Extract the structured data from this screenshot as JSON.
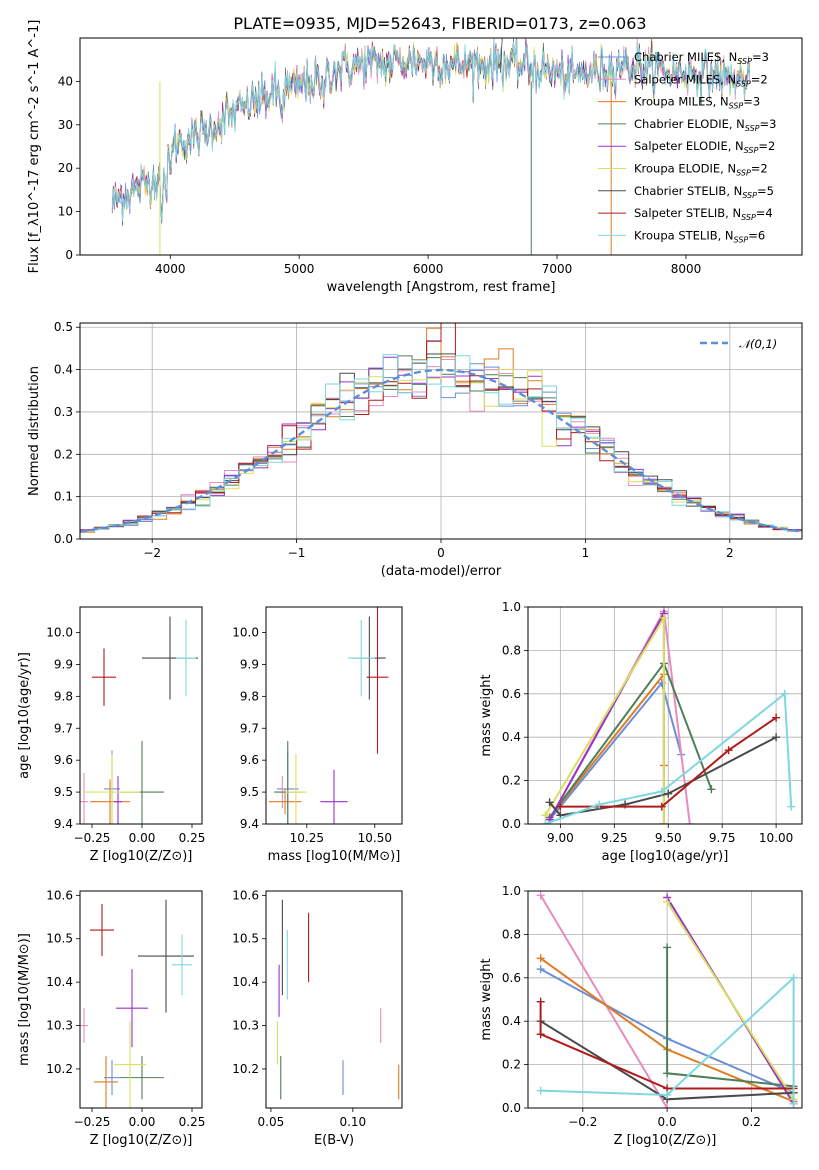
{
  "title": "PLATE=0935, MJD=52643, FIBERID=0173, z=0.063",
  "colors": {
    "Chabrier MILES": "#6b8fd6",
    "Salpeter MILES": "#e88bbd",
    "Kroupa MILES": "#e07b24",
    "Chabrier ELODIE": "#4f7f5a",
    "Salpeter ELODIE": "#9933cc",
    "Kroupa ELODIE": "#d8e060",
    "Chabrier STELIB": "#4a4a4a",
    "Salpeter STELIB": "#b01c1c",
    "Kroupa STELIB": "#7fd7df",
    "normal": "#5b8fd9"
  },
  "chart_data": [
    {
      "type": "line",
      "id": "spectrum",
      "xlabel": "wavelength [Angstrom, rest frame]",
      "ylabel": "Flux [f_λ10^-17 erg cm^-2 s^-1 A^-1]",
      "xlim": [
        3300,
        8900
      ],
      "ylim": [
        0,
        50
      ],
      "xticks": [
        4000,
        5000,
        6000,
        7000,
        8000
      ],
      "yticks": [
        0,
        10,
        20,
        30,
        40
      ],
      "continuum": [
        [
          3550,
          12
        ],
        [
          3700,
          15
        ],
        [
          3850,
          17
        ],
        [
          3950,
          20
        ],
        [
          4050,
          26
        ],
        [
          4200,
          27
        ],
        [
          4350,
          30
        ],
        [
          4500,
          33
        ],
        [
          4700,
          36
        ],
        [
          4900,
          38
        ],
        [
          5100,
          40
        ],
        [
          5300,
          43
        ],
        [
          5500,
          44
        ],
        [
          5700,
          44
        ],
        [
          5900,
          45
        ],
        [
          6100,
          44
        ],
        [
          6300,
          44
        ],
        [
          6500,
          44
        ],
        [
          6700,
          44
        ],
        [
          6900,
          43
        ],
        [
          7100,
          41
        ],
        [
          7300,
          42
        ],
        [
          7500,
          44
        ],
        [
          7700,
          43
        ],
        [
          7900,
          42
        ],
        [
          8100,
          42
        ],
        [
          8300,
          41
        ],
        [
          8500,
          40
        ]
      ],
      "legend_position": "top-right",
      "legend": [
        {
          "name": "Chabrier MILES",
          "nssp": "3"
        },
        {
          "name": "Salpeter MILES",
          "nssp": "2"
        },
        {
          "name": "Kroupa MILES",
          "nssp": "3"
        },
        {
          "name": "Chabrier ELODIE",
          "nssp": "3"
        },
        {
          "name": "Salpeter ELODIE",
          "nssp": "2"
        },
        {
          "name": "Kroupa ELODIE",
          "nssp": "2"
        },
        {
          "name": "Chabrier STELIB",
          "nssp": "5"
        },
        {
          "name": "Salpeter STELIB",
          "nssp": "4"
        },
        {
          "name": "Kroupa STELIB",
          "nssp": "6"
        }
      ]
    },
    {
      "type": "histogram",
      "id": "residuals",
      "xlabel": "(data-model)/error",
      "ylabel": "Normed distribution",
      "xlim": [
        -2.5,
        2.5
      ],
      "ylim": [
        0,
        0.51
      ],
      "xticks": [
        -2,
        -1,
        0,
        1,
        2
      ],
      "yticks": [
        0.0,
        0.1,
        0.2,
        0.3,
        0.4,
        0.5
      ],
      "grid": true,
      "bin_width": 0.1,
      "normal_curve": {
        "label": "𝒩(0,1)",
        "mean": 0,
        "sigma": 1,
        "style": "dashed"
      },
      "legend_position": "top-right"
    },
    {
      "type": "scatter",
      "id": "z-age",
      "xlabel": "Z [log10(Z/Z⊙)]",
      "ylabel": "age [log10(age/yr)]",
      "xlim": [
        -0.31,
        0.3
      ],
      "ylim": [
        9.4,
        10.08
      ],
      "xticks": [
        -0.25,
        0.0,
        0.25
      ],
      "xticklabels": [
        "−0.25",
        "0.00",
        "0.25"
      ],
      "yticks": [
        9.4,
        9.5,
        9.6,
        9.7,
        9.8,
        9.9,
        10.0
      ],
      "points": [
        {
          "series": "Chabrier MILES",
          "x": -0.15,
          "y": 9.51,
          "xerr": 0.04,
          "yerr": 0.12
        },
        {
          "series": "Salpeter MILES",
          "x": -0.29,
          "y": 9.47,
          "xerr": 0.02,
          "yerr": 0.09
        },
        {
          "series": "Kroupa MILES",
          "x": -0.16,
          "y": 9.47,
          "xerr": 0.1,
          "yerr": 0.07
        },
        {
          "series": "Chabrier ELODIE",
          "x": 0.0,
          "y": 9.5,
          "xerr": 0.11,
          "yerr": 0.16
        },
        {
          "series": "Salpeter ELODIE",
          "x": -0.12,
          "y": 9.47,
          "xerr": 0.02,
          "yerr": 0.08
        },
        {
          "series": "Kroupa ELODIE",
          "x": -0.15,
          "y": 9.5,
          "xerr": 0.14,
          "yerr": 0.12
        },
        {
          "series": "Chabrier STELIB",
          "x": 0.14,
          "y": 9.92,
          "xerr": 0.14,
          "yerr": 0.13
        },
        {
          "series": "Salpeter STELIB",
          "x": -0.19,
          "y": 9.86,
          "xerr": 0.06,
          "yerr": 0.09
        },
        {
          "series": "Kroupa STELIB",
          "x": 0.22,
          "y": 9.92,
          "xerr": 0.05,
          "yerr": 0.12
        }
      ]
    },
    {
      "type": "scatter",
      "id": "mass-age",
      "xlabel": "mass [log10(M/M⊙)]",
      "ylabel": "",
      "xlim": [
        10.1,
        10.6
      ],
      "ylim": [
        9.4,
        10.08
      ],
      "xticks": [
        10.25,
        10.5
      ],
      "xticklabels": [
        "10.25",
        "10.50"
      ],
      "yticks": [
        9.4,
        9.5,
        9.6,
        9.7,
        9.8,
        9.9,
        10.0
      ],
      "points": [
        {
          "series": "Chabrier MILES",
          "x": 10.18,
          "y": 9.51,
          "xerr": 0.04,
          "yerr": 0.12
        },
        {
          "series": "Salpeter MILES",
          "x": 10.16,
          "y": 9.5,
          "xerr": 0.02,
          "yerr": 0.05
        },
        {
          "series": "Kroupa MILES",
          "x": 10.17,
          "y": 9.47,
          "xerr": 0.06,
          "yerr": 0.04
        },
        {
          "series": "Chabrier ELODIE",
          "x": 10.18,
          "y": 9.5,
          "xerr": 0.05,
          "yerr": 0.16
        },
        {
          "series": "Salpeter ELODIE",
          "x": 10.35,
          "y": 9.47,
          "xerr": 0.05,
          "yerr": 0.1
        },
        {
          "series": "Kroupa ELODIE",
          "x": 10.21,
          "y": 9.5,
          "xerr": 0.04,
          "yerr": 0.12
        },
        {
          "series": "Chabrier STELIB",
          "x": 10.48,
          "y": 9.92,
          "xerr": 0.06,
          "yerr": 0.13
        },
        {
          "series": "Salpeter STELIB",
          "x": 10.51,
          "y": 9.86,
          "xerr": 0.04,
          "yerr": 0.24
        },
        {
          "series": "Kroupa STELIB",
          "x": 10.45,
          "y": 9.92,
          "xerr": 0.05,
          "yerr": 0.12
        }
      ]
    },
    {
      "type": "line",
      "id": "age-weights",
      "xlabel": "age [log10(age/yr)]",
      "ylabel": "mass weight",
      "xlim": [
        8.85,
        10.12
      ],
      "ylim": [
        0,
        1.0
      ],
      "xticks": [
        9.0,
        9.25,
        9.5,
        9.75,
        10.0
      ],
      "xticklabels": [
        "9.00",
        "9.25",
        "9.50",
        "9.75",
        "10.00"
      ],
      "yticks": [
        0.0,
        0.2,
        0.4,
        0.6,
        0.8,
        1.0
      ],
      "grid": true,
      "series": [
        {
          "name": "Chabrier MILES",
          "points": [
            [
              8.95,
              0.02
            ],
            [
              9.47,
              0.65
            ],
            [
              9.56,
              0.32
            ]
          ],
          "xerr": [
            0,
            0,
            0
          ]
        },
        {
          "name": "Salpeter MILES",
          "points": [
            [
              8.95,
              0.02
            ],
            [
              9.48,
              0.98
            ],
            [
              9.6,
              0.0
            ]
          ]
        },
        {
          "name": "Kroupa MILES",
          "points": [
            [
              8.95,
              0.03
            ],
            [
              9.48,
              0.69
            ],
            [
              9.48,
              0.27
            ]
          ]
        },
        {
          "name": "Chabrier ELODIE",
          "points": [
            [
              8.95,
              0.03
            ],
            [
              9.48,
              0.74
            ],
            [
              9.7,
              0.16
            ]
          ]
        },
        {
          "name": "Salpeter ELODIE",
          "points": [
            [
              8.95,
              0.02
            ],
            [
              9.48,
              0.97
            ],
            [
              9.48,
              0.0
            ]
          ]
        },
        {
          "name": "Kroupa ELODIE",
          "points": [
            [
              8.93,
              0.04
            ],
            [
              9.48,
              0.95
            ],
            [
              9.48,
              0.0
            ]
          ]
        },
        {
          "name": "Chabrier STELIB",
          "points": [
            [
              8.95,
              0.1
            ],
            [
              9.0,
              0.04
            ],
            [
              9.3,
              0.09
            ],
            [
              9.5,
              0.14
            ],
            [
              10.0,
              0.4
            ]
          ]
        },
        {
          "name": "Salpeter STELIB",
          "points": [
            [
              9.0,
              0.08
            ],
            [
              9.47,
              0.08
            ],
            [
              9.78,
              0.34
            ],
            [
              10.0,
              0.49
            ]
          ]
        },
        {
          "name": "Kroupa STELIB",
          "points": [
            [
              8.93,
              0.0
            ],
            [
              9.18,
              0.09
            ],
            [
              9.47,
              0.15
            ],
            [
              10.04,
              0.6
            ],
            [
              10.07,
              0.08
            ]
          ]
        }
      ]
    },
    {
      "type": "scatter",
      "id": "z-mass",
      "xlabel": "Z [log10(Z/Z⊙)]",
      "ylabel": "mass [log10(M/M⊙)]",
      "xlim": [
        -0.31,
        0.3
      ],
      "ylim": [
        10.11,
        10.61
      ],
      "xticks": [
        -0.25,
        0.0,
        0.25
      ],
      "xticklabels": [
        "−0.25",
        "0.00",
        "0.25"
      ],
      "yticks": [
        10.2,
        10.3,
        10.4,
        10.5,
        10.6
      ],
      "points": [
        {
          "series": "Chabrier MILES",
          "x": -0.15,
          "y": 10.18,
          "xerr": 0.04,
          "yerr": 0.04
        },
        {
          "series": "Salpeter MILES",
          "x": -0.29,
          "y": 10.3,
          "xerr": 0.02,
          "yerr": 0.04
        },
        {
          "series": "Kroupa MILES",
          "x": -0.18,
          "y": 10.17,
          "xerr": 0.06,
          "yerr": 0.06
        },
        {
          "series": "Chabrier ELODIE",
          "x": 0.0,
          "y": 10.18,
          "xerr": 0.11,
          "yerr": 0.05
        },
        {
          "series": "Salpeter ELODIE",
          "x": -0.05,
          "y": 10.34,
          "xerr": 0.08,
          "yerr": 0.09
        },
        {
          "series": "Kroupa ELODIE",
          "x": -0.06,
          "y": 10.21,
          "xerr": 0.08,
          "yerr": 0.1
        },
        {
          "series": "Chabrier STELIB",
          "x": 0.12,
          "y": 10.46,
          "xerr": 0.14,
          "yerr": 0.13
        },
        {
          "series": "Salpeter STELIB",
          "x": -0.2,
          "y": 10.52,
          "xerr": 0.06,
          "yerr": 0.06
        },
        {
          "series": "Kroupa STELIB",
          "x": 0.2,
          "y": 10.44,
          "xerr": 0.05,
          "yerr": 0.07
        }
      ]
    },
    {
      "type": "scatter",
      "id": "ebv-mass",
      "xlabel": "E(B-V)",
      "ylabel": "",
      "xlim": [
        0.047,
        0.13
      ],
      "ylim": [
        10.11,
        10.61
      ],
      "xticks": [
        0.05,
        0.1
      ],
      "xticklabels": [
        "0.05",
        "0.10"
      ],
      "yticks": [
        10.2,
        10.3,
        10.4,
        10.5,
        10.6
      ],
      "points": [
        {
          "series": "Chabrier MILES",
          "x": 0.094,
          "y": 10.18,
          "xerr": 0,
          "yerr": 0.04
        },
        {
          "series": "Salpeter MILES",
          "x": 0.117,
          "y": 10.3,
          "xerr": 0,
          "yerr": 0.04
        },
        {
          "series": "Kroupa MILES",
          "x": 0.128,
          "y": 10.17,
          "xerr": 0,
          "yerr": 0.04
        },
        {
          "series": "Chabrier ELODIE",
          "x": 0.056,
          "y": 10.18,
          "xerr": 0,
          "yerr": 0.05
        },
        {
          "series": "Salpeter ELODIE",
          "x": 0.055,
          "y": 10.38,
          "xerr": 0,
          "yerr": 0.06
        },
        {
          "series": "Kroupa ELODIE",
          "x": 0.054,
          "y": 10.26,
          "xerr": 0,
          "yerr": 0.05
        },
        {
          "series": "Chabrier STELIB",
          "x": 0.057,
          "y": 10.48,
          "xerr": 0,
          "yerr": 0.11
        },
        {
          "series": "Salpeter STELIB",
          "x": 0.073,
          "y": 10.48,
          "xerr": 0,
          "yerr": 0.08
        },
        {
          "series": "Kroupa STELIB",
          "x": 0.06,
          "y": 10.44,
          "xerr": 0,
          "yerr": 0.08
        }
      ]
    },
    {
      "type": "line",
      "id": "z-weights",
      "xlabel": "Z [log10(Z/Z⊙)]",
      "ylabel": "mass weight",
      "xlim": [
        -0.33,
        0.32
      ],
      "ylim": [
        0,
        1.0
      ],
      "xticks": [
        -0.2,
        0.0,
        0.2
      ],
      "xticklabels": [
        "−0.2",
        "0.0",
        "0.2"
      ],
      "yticks": [
        0.0,
        0.2,
        0.4,
        0.6,
        0.8,
        1.0
      ],
      "grid": true,
      "series": [
        {
          "name": "Chabrier MILES",
          "points": [
            [
              -0.3,
              0.64
            ],
            [
              0.0,
              0.32
            ],
            [
              0.3,
              0.07
            ]
          ]
        },
        {
          "name": "Salpeter MILES",
          "points": [
            [
              -0.3,
              0.98
            ],
            [
              0.0,
              0.0
            ]
          ]
        },
        {
          "name": "Kroupa MILES",
          "points": [
            [
              -0.3,
              0.69
            ],
            [
              0.0,
              0.27
            ],
            [
              0.3,
              0.03
            ]
          ]
        },
        {
          "name": "Chabrier ELODIE",
          "points": [
            [
              0.0,
              0.74
            ],
            [
              0.0,
              0.16
            ],
            [
              0.3,
              0.1
            ]
          ]
        },
        {
          "name": "Salpeter ELODIE",
          "points": [
            [
              0.0,
              0.97
            ],
            [
              0.3,
              0.02
            ]
          ]
        },
        {
          "name": "Kroupa ELODIE",
          "points": [
            [
              0.0,
              0.95
            ],
            [
              0.3,
              0.04
            ]
          ]
        },
        {
          "name": "Chabrier STELIB",
          "points": [
            [
              -0.3,
              0.4
            ],
            [
              0.0,
              0.04
            ],
            [
              0.3,
              0.07
            ]
          ]
        },
        {
          "name": "Salpeter STELIB",
          "points": [
            [
              -0.3,
              0.49
            ],
            [
              -0.3,
              0.34
            ],
            [
              0.0,
              0.09
            ],
            [
              0.3,
              0.09
            ]
          ]
        },
        {
          "name": "Kroupa STELIB",
          "points": [
            [
              -0.3,
              0.08
            ],
            [
              0.0,
              0.06
            ],
            [
              0.3,
              0.6
            ],
            [
              0.3,
              0.02
            ]
          ]
        }
      ]
    }
  ]
}
